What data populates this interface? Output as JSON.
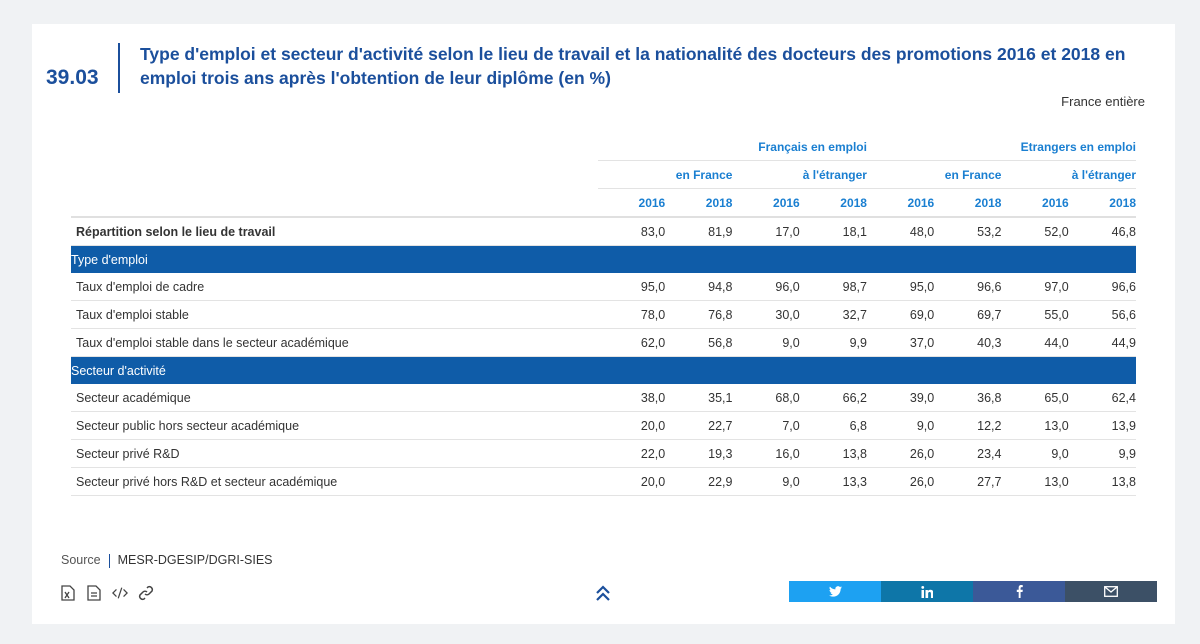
{
  "header": {
    "number": "39.03",
    "title": "Type d'emploi et secteur d'activité selon le lieu de travail et la nationalité des docteurs des promotions 2016 et 2018 en emploi trois ans après l'obtention de leur diplôme (en %)",
    "scope": "France entière"
  },
  "table": {
    "groups": [
      "Français en emploi",
      "Etrangers en emploi"
    ],
    "subgroups": [
      "en France",
      "à l'étranger",
      "en France",
      "à l'étranger"
    ],
    "years": [
      "2016",
      "2018",
      "2016",
      "2018",
      "2016",
      "2018",
      "2016",
      "2018"
    ],
    "row_repartition": {
      "label": "Répartition selon le lieu de travail",
      "values": [
        "83,0",
        "81,9",
        "17,0",
        "18,1",
        "48,0",
        "53,2",
        "52,0",
        "46,8"
      ]
    },
    "section_emploi": "Type d'emploi",
    "rows_emploi": [
      {
        "label": "Taux d'emploi de cadre",
        "values": [
          "95,0",
          "94,8",
          "96,0",
          "98,7",
          "95,0",
          "96,6",
          "97,0",
          "96,6"
        ]
      },
      {
        "label": "Taux d'emploi stable",
        "values": [
          "78,0",
          "76,8",
          "30,0",
          "32,7",
          "69,0",
          "69,7",
          "55,0",
          "56,6"
        ]
      },
      {
        "label": "Taux d'emploi stable dans le secteur académique",
        "values": [
          "62,0",
          "56,8",
          "9,0",
          "9,9",
          "37,0",
          "40,3",
          "44,0",
          "44,9"
        ]
      }
    ],
    "section_activite": "Secteur d'activité",
    "rows_activite": [
      {
        "label": "Secteur académique",
        "values": [
          "38,0",
          "35,1",
          "68,0",
          "66,2",
          "39,0",
          "36,8",
          "65,0",
          "62,4"
        ]
      },
      {
        "label": "Secteur public hors secteur académique",
        "values": [
          "20,0",
          "22,7",
          "7,0",
          "6,8",
          "9,0",
          "12,2",
          "13,0",
          "13,9"
        ]
      },
      {
        "label": "Secteur privé R&D",
        "values": [
          "22,0",
          "19,3",
          "16,0",
          "13,8",
          "26,0",
          "23,4",
          "9,0",
          "9,9"
        ]
      },
      {
        "label": "Secteur privé hors R&D et secteur académique",
        "values": [
          "20,0",
          "22,9",
          "9,0",
          "13,3",
          "26,0",
          "27,7",
          "13,0",
          "13,8"
        ]
      }
    ]
  },
  "footer": {
    "source_label": "Source",
    "source_value": "MESR-DGESIP/DGRI-SIES",
    "tools": [
      "excel-icon",
      "document-icon",
      "code-icon",
      "link-icon"
    ],
    "share": [
      "twitter-icon",
      "linkedin-icon",
      "facebook-icon",
      "mail-icon"
    ]
  },
  "colors": {
    "accent": "#1b4f9c",
    "header_text": "#1a7fd1",
    "section_bar": "#0f5ca8",
    "twitter": "#1da1f2",
    "linkedin": "#0e76a8",
    "facebook": "#3b5998",
    "mail": "#3c5066"
  }
}
